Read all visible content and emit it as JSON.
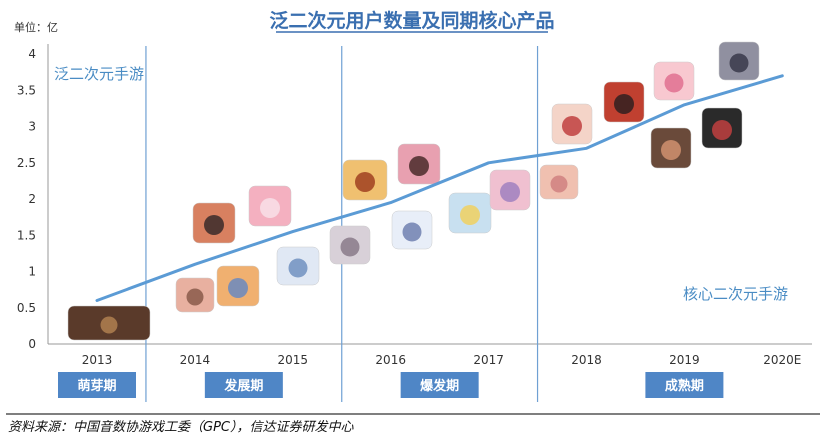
{
  "chart_data": {
    "type": "line",
    "title": "泛二次元用户数量及同期核心产品",
    "unit_label": "单位：亿",
    "categories": [
      "2013",
      "2014",
      "2015",
      "2016",
      "2017",
      "2018",
      "2019",
      "2020E"
    ],
    "series": [
      {
        "name": "",
        "values": [
          0.6,
          1.1,
          1.55,
          1.95,
          2.5,
          2.7,
          3.3,
          3.7
        ]
      }
    ],
    "ylim": [
      0,
      4
    ],
    "y_ticks": [
      "0",
      "0.5",
      "1",
      "1.5",
      "2",
      "2.5",
      "3",
      "3.5",
      "4"
    ],
    "grid": false,
    "phases": [
      "萌芽期",
      "发展期",
      "爆发期",
      "成熟期"
    ],
    "annotations": {
      "left": "泛二次元手游",
      "right": "核心二次元手游"
    },
    "colors": {
      "line": "#5b9bd5",
      "phase_box": "#4f86c6",
      "divider": "#6fa0d3",
      "title": "#3a6fb0",
      "annotation": "#4a8cc4"
    }
  },
  "source": "资料来源：中国音数协游戏工委（GPC），信达证券研发中心"
}
